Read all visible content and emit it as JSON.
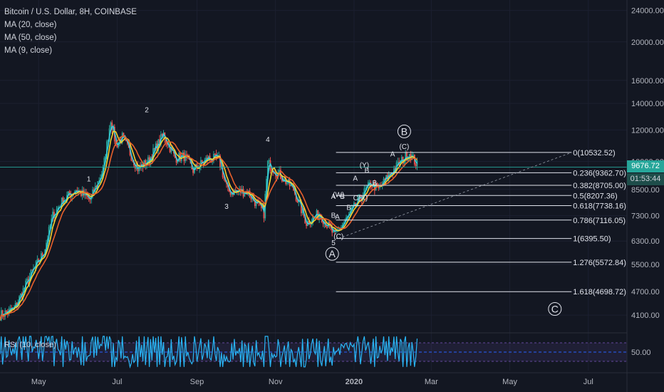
{
  "legend": {
    "title": "Bitcoin / U.S. Dollar, 8H, COINBASE",
    "ma20": "MA (20, close)",
    "ma50": "MA (50, close)",
    "ma9": "MA (9, close)"
  },
  "rsi_label": "RSI (10, close)",
  "current_price": "9676.72",
  "countdown": "01:53:44",
  "colors": {
    "bg": "#131722",
    "price_tag": "#26a69a",
    "countdown_tag": "#1e4d4a",
    "ma20": "#f5d130",
    "ma50": "#e8602c",
    "ma9": "#3ad1e0",
    "rsi": "#29b6f6"
  },
  "chart_data": {
    "type": "line",
    "title": "Bitcoin / U.S. Dollar, 8H, COINBASE",
    "ylim": [
      3700,
      25500
    ],
    "y_scale": "log",
    "y_ticks": [
      "24000.00",
      "20000.00",
      "16000.00",
      "14000.00",
      "12000.00",
      "10000.00",
      "8500.00",
      "7300.00",
      "6300.00",
      "5500.00",
      "4700.00",
      "4100.00"
    ],
    "x_ticks": [
      "May",
      "Jul",
      "Sep",
      "Nov",
      "2020",
      "Mar",
      "May",
      "Jul"
    ],
    "price_path": [
      [
        "2019-04-01",
        4100
      ],
      [
        "2019-04-12",
        4250
      ],
      [
        "2019-04-25",
        5200
      ],
      [
        "2019-05-05",
        5900
      ],
      [
        "2019-05-12",
        7300
      ],
      [
        "2019-05-20",
        8000
      ],
      [
        "2019-05-30",
        8500
      ],
      [
        "2019-06-10",
        8000
      ],
      [
        "2019-06-20",
        9500
      ],
      [
        "2019-06-26",
        12800
      ],
      [
        "2019-06-30",
        11000
      ],
      [
        "2019-07-05",
        11500
      ],
      [
        "2019-07-17",
        9600
      ],
      [
        "2019-07-25",
        10000
      ],
      [
        "2019-08-06",
        11700
      ],
      [
        "2019-08-15",
        10200
      ],
      [
        "2019-08-22",
        10300
      ],
      [
        "2019-08-29",
        9500
      ],
      [
        "2019-09-10",
        10200
      ],
      [
        "2019-09-18",
        10100
      ],
      [
        "2019-09-25",
        8400
      ],
      [
        "2019-10-10",
        8400
      ],
      [
        "2019-10-23",
        7400
      ],
      [
        "2019-10-26",
        9900
      ],
      [
        "2019-11-05",
        9200
      ],
      [
        "2019-11-15",
        8500
      ],
      [
        "2019-11-25",
        7000
      ],
      [
        "2019-12-05",
        7400
      ],
      [
        "2019-12-17",
        6500
      ],
      [
        "2019-12-28",
        7300
      ],
      [
        "2020-01-06",
        8100
      ],
      [
        "2020-01-14",
        8800
      ],
      [
        "2020-01-20",
        8500
      ],
      [
        "2020-01-30",
        9400
      ],
      [
        "2020-02-09",
        10200
      ],
      [
        "2020-02-13",
        10500
      ],
      [
        "2020-02-19",
        9800
      ]
    ],
    "rsi": {
      "label": "RSI (10, close)",
      "level": 50,
      "ylim": [
        10,
        90
      ],
      "tick": "50.00"
    },
    "fibonacci": [
      {
        "ratio": "0",
        "label": "0(10532.52)",
        "price": 10532.52
      },
      {
        "ratio": "0.236",
        "label": "0.236(9362.70)",
        "price": 9362.7
      },
      {
        "ratio": "0.382",
        "label": "0.382(8705.00)",
        "price": 8705.0
      },
      {
        "ratio": "0.5",
        "label": "0.5(8207.36)",
        "price": 8207.36
      },
      {
        "ratio": "0.618",
        "label": "0.618(7738.16)",
        "price": 7738.16
      },
      {
        "ratio": "0.786",
        "label": "0.786(7116.05)",
        "price": 7116.05
      },
      {
        "ratio": "1",
        "label": "1(6395.50)",
        "price": 6395.5
      },
      {
        "ratio": "1.276",
        "label": "1.276(5572.84)",
        "price": 5572.84
      },
      {
        "ratio": "1.618",
        "label": "1.618(4698.72)",
        "price": 4698.72
      }
    ],
    "wave_labels": [
      {
        "text": "1",
        "date": "2019-06-09",
        "price": 8900
      },
      {
        "text": "2",
        "date": "2019-07-24",
        "price": 13300
      },
      {
        "text": "3",
        "date": "2019-09-24",
        "price": 7600
      },
      {
        "text": "4",
        "date": "2019-10-26",
        "price": 11200
      },
      {
        "text": "5",
        "date": "2019-12-16",
        "price": 6150
      },
      {
        "text": "B",
        "date": "2019-12-16",
        "price": 7220
      },
      {
        "text": "A",
        "date": "2019-12-19",
        "price": 7150
      },
      {
        "text": "(C)",
        "date": "2019-12-20",
        "price": 6380
      },
      {
        "text": "A",
        "date": "2019-12-16",
        "price": 8050
      },
      {
        "text": "(W)",
        "date": "2019-12-20",
        "price": 8130
      },
      {
        "text": "B",
        "date": "2019-12-23",
        "price": 8050
      },
      {
        "text": "B",
        "date": "2019-12-28",
        "price": 7550
      },
      {
        "text": "C(X)",
        "date": "2020-01-06",
        "price": 7990
      },
      {
        "text": "(Y)",
        "date": "2020-01-09",
        "price": 9650
      },
      {
        "text": "B",
        "date": "2020-01-11",
        "price": 9350
      },
      {
        "text": "A",
        "date": "2020-01-02",
        "price": 8950
      },
      {
        "text": "B",
        "date": "2020-01-17",
        "price": 8700
      },
      {
        "text": "A",
        "date": "2020-01-31",
        "price": 10300
      },
      {
        "text": "(C)",
        "date": "2020-02-09",
        "price": 10750
      }
    ],
    "circled_labels": [
      {
        "text": "A",
        "date": "2019-12-15",
        "price": 5850
      },
      {
        "text": "B",
        "date": "2020-02-09",
        "price": 11900
      },
      {
        "text": "C",
        "date": "2020-06-05",
        "price": 4250
      }
    ]
  }
}
